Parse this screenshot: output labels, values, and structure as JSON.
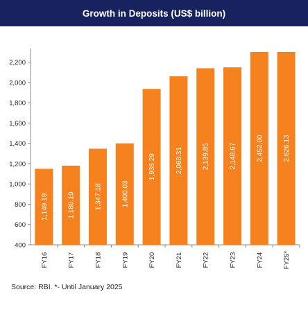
{
  "chart_data": {
    "type": "bar",
    "title": "Growth in Deposits (US$ billion)",
    "categories": [
      "FY16",
      "FY17",
      "FY18",
      "FY19",
      "FY20",
      "FY21",
      "FY22",
      "FY23",
      "FY24",
      "FY25*"
    ],
    "values": [
      1149.19,
      1180.19,
      1347.18,
      1400.03,
      1936.29,
      2060.31,
      2139.85,
      2148.67,
      2452.0,
      2626.13
    ],
    "value_labels": [
      "1,149.19",
      "1,180.19",
      "1,347.18",
      "1,400.03",
      "1,936.29",
      "2,060.31",
      "2,139.85",
      "2,148.67",
      "2,452.00",
      "2,626.13"
    ],
    "ylim": [
      400,
      2300
    ],
    "yticks": [
      400,
      600,
      800,
      1000,
      1200,
      1400,
      1600,
      1800,
      2000,
      2200
    ],
    "ytick_labels": [
      "400",
      "600",
      "800",
      "1,000",
      "1,200",
      "1,400",
      "1,600",
      "1,800",
      "2,000",
      "2,200"
    ],
    "xlabel": "",
    "ylabel": "",
    "grid": false,
    "bar_color": "#f5821f",
    "header_color": "#17225f"
  },
  "source_text": "Source: RBI. *- Until January 2025"
}
